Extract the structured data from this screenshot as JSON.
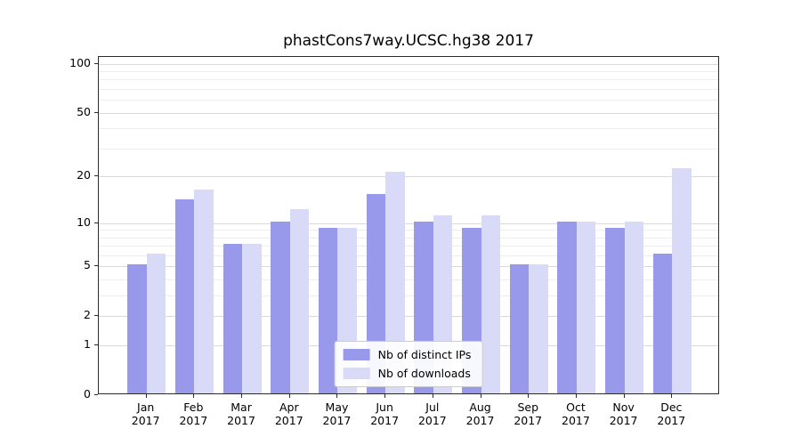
{
  "title": "phastCons7way.UCSC.hg38 2017",
  "chart_data": {
    "type": "bar",
    "title": "phastCons7way.UCSC.hg38 2017",
    "categories": [
      "Jan",
      "Feb",
      "Mar",
      "Apr",
      "May",
      "Jun",
      "Jul",
      "Aug",
      "Sep",
      "Oct",
      "Nov",
      "Dec"
    ],
    "year_label": "2017",
    "series": [
      {
        "name": "Nb of distinct IPs",
        "color": "#9999ec",
        "values": [
          5,
          14,
          7,
          10,
          9,
          15,
          10,
          9,
          5,
          10,
          9,
          6
        ]
      },
      {
        "name": "Nb of downloads",
        "color": "#d9d9f8",
        "values": [
          6,
          16,
          7,
          12,
          9,
          21,
          11,
          11,
          5,
          10,
          10,
          22
        ]
      }
    ],
    "y_scale": "log1p",
    "y_ticks": [
      0,
      1,
      2,
      5,
      10,
      20,
      50,
      100
    ],
    "y_minor_ticks": [
      3,
      4,
      6,
      7,
      8,
      9,
      30,
      40,
      60,
      70,
      80,
      90
    ],
    "ylim": [
      0,
      110
    ],
    "xlabel": "",
    "ylabel": "",
    "grid": true,
    "legend_position": "lower center"
  },
  "colors": {
    "grid_major": "#d9d9d9",
    "grid_minor": "#ededed",
    "axis": "#2b2b2b",
    "background": "#ffffff"
  }
}
